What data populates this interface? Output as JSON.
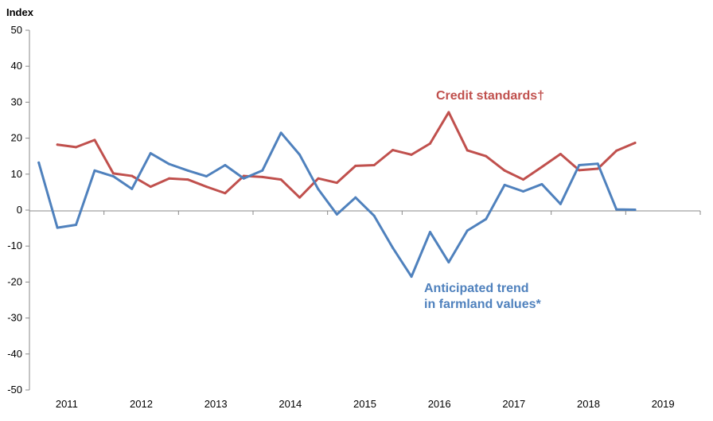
{
  "chart_data": {
    "type": "line",
    "ylabel": "Index",
    "ylim": [
      -50,
      50
    ],
    "yticks": [
      50,
      40,
      30,
      20,
      10,
      0,
      -10,
      -20,
      -30,
      -40,
      -50
    ],
    "year_labels": [
      "2011",
      "2012",
      "2013",
      "2014",
      "2015",
      "2016",
      "2017",
      "2018",
      "2019"
    ],
    "x_quarters": [
      "2011Q1",
      "2011Q2",
      "2011Q3",
      "2011Q4",
      "2012Q1",
      "2012Q2",
      "2012Q3",
      "2012Q4",
      "2013Q1",
      "2013Q2",
      "2013Q3",
      "2013Q4",
      "2014Q1",
      "2014Q2",
      "2014Q3",
      "2014Q4",
      "2015Q1",
      "2015Q2",
      "2015Q3",
      "2015Q4",
      "2016Q1",
      "2016Q2",
      "2016Q3",
      "2016Q4",
      "2017Q1",
      "2017Q2",
      "2017Q3",
      "2017Q4",
      "2018Q1",
      "2018Q2",
      "2018Q3",
      "2018Q4",
      "2019Q1"
    ],
    "grid": false,
    "series": [
      {
        "name": "Credit standards†",
        "color": "#c0504d",
        "values": [
          null,
          18.2,
          17.5,
          19.5,
          10.2,
          9.5,
          6.5,
          8.8,
          8.5,
          6.5,
          4.7,
          9.5,
          9.2,
          8.5,
          3.5,
          8.8,
          7.6,
          12.3,
          12.5,
          16.7,
          15.4,
          18.5,
          27.2,
          16.6,
          15.0,
          11.0,
          8.5,
          12.0,
          15.6,
          11.1,
          11.5,
          16.5,
          18.7
        ]
      },
      {
        "name": "Anticipated trend in farmland values*",
        "color": "#4f81bd",
        "values": [
          13.2,
          -4.9,
          -4.1,
          11.0,
          9.4,
          5.9,
          15.8,
          12.8,
          11.0,
          9.4,
          12.5,
          8.8,
          11.0,
          21.5,
          15.4,
          5.8,
          -1.2,
          3.5,
          -1.6,
          -10.5,
          -18.5,
          -6.1,
          -14.5,
          -5.7,
          -2.5,
          7.0,
          5.2,
          7.2,
          1.7,
          12.5,
          12.9,
          0.2,
          0.1
        ]
      }
    ]
  }
}
